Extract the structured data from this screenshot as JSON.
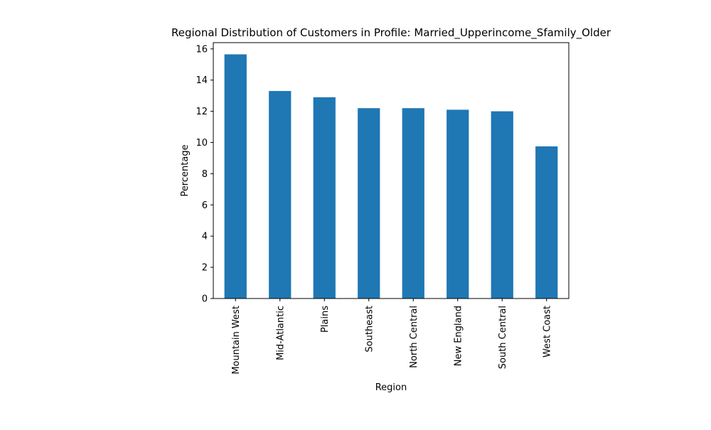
{
  "chart_data": {
    "type": "bar",
    "title": "Regional Distribution of Customers in Profile: Married_Upperincome_Sfamily_Older",
    "xlabel": "Region",
    "ylabel": "Percentage",
    "categories": [
      "Mountain West",
      "Mid-Atlantic",
      "Plains",
      "Southeast",
      "North Central",
      "New England",
      "South Central",
      "West Coast"
    ],
    "values": [
      15.65,
      13.3,
      12.9,
      12.2,
      12.2,
      12.1,
      12.0,
      9.75
    ],
    "ylim": [
      0,
      16.4
    ],
    "yticks": [
      0,
      2,
      4,
      6,
      8,
      10,
      12,
      14,
      16
    ],
    "bar_color": "#1f77b4",
    "grid": false,
    "legend": "none"
  }
}
